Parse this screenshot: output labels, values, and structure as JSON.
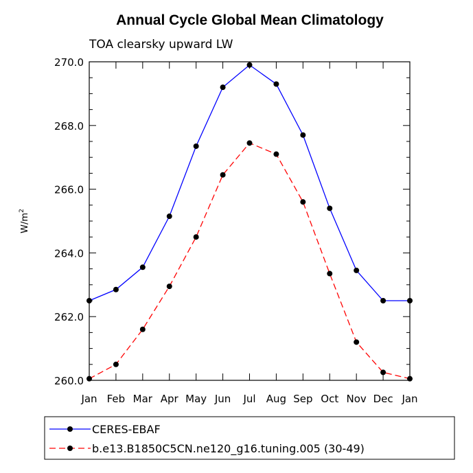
{
  "chart_data": {
    "type": "line",
    "title": "Annual Cycle Global Mean Climatology",
    "subtitle": "TOA clearsky upward LW",
    "ylabel_base": "W/m",
    "ylabel_sup": "2",
    "ylim": [
      260.0,
      270.0
    ],
    "yticks": [
      "260.0",
      "262.0",
      "264.0",
      "266.0",
      "268.0",
      "270.0"
    ],
    "categories": [
      "Jan",
      "Feb",
      "Mar",
      "Apr",
      "May",
      "Jun",
      "Jul",
      "Aug",
      "Sep",
      "Oct",
      "Nov",
      "Dec",
      "Jan"
    ],
    "series": [
      {
        "name": "CERES-EBAF",
        "color": "#0000ff",
        "dash": "solid",
        "values": [
          262.5,
          262.85,
          263.55,
          265.15,
          267.35,
          269.2,
          269.9,
          269.3,
          267.7,
          265.4,
          263.45,
          262.5,
          262.5
        ]
      },
      {
        "name": "b.e13.B1850C5CN.ne120_g16.tuning.005 (30-49)",
        "color": "#ff0000",
        "dash": "dashed",
        "values": [
          260.05,
          260.5,
          261.6,
          262.95,
          264.5,
          266.45,
          267.45,
          267.1,
          265.6,
          263.35,
          261.2,
          260.25,
          260.05
        ]
      }
    ],
    "grid": false,
    "legend_position": "bottom"
  }
}
